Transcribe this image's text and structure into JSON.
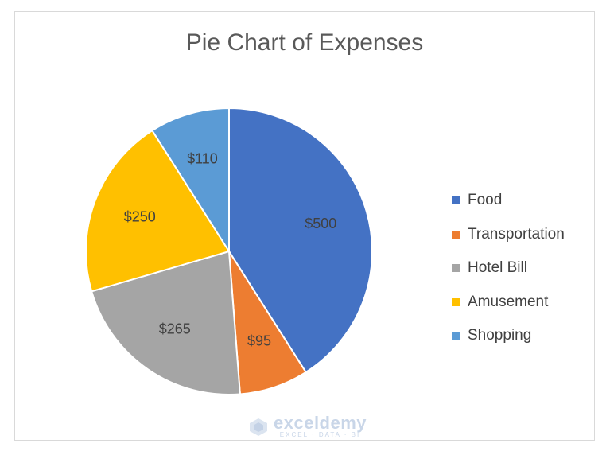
{
  "chart_data": {
    "type": "pie",
    "title": "Pie Chart of Expenses",
    "categories": [
      "Food",
      "Transportation",
      "Hotel Bill",
      "Amusement",
      "Shopping"
    ],
    "values": [
      500,
      95,
      265,
      250,
      110
    ],
    "data_labels": [
      "$500",
      "$95",
      "$265",
      "$250",
      "$110"
    ],
    "colors": [
      "#4472c4",
      "#ed7d31",
      "#a5a5a5",
      "#ffc000",
      "#5b9bd5"
    ],
    "legend_position": "right",
    "start_angle": "12 o'clock, clockwise"
  },
  "watermark": {
    "name": "exceldemy",
    "tagline": "EXCEL · DATA · BI"
  }
}
